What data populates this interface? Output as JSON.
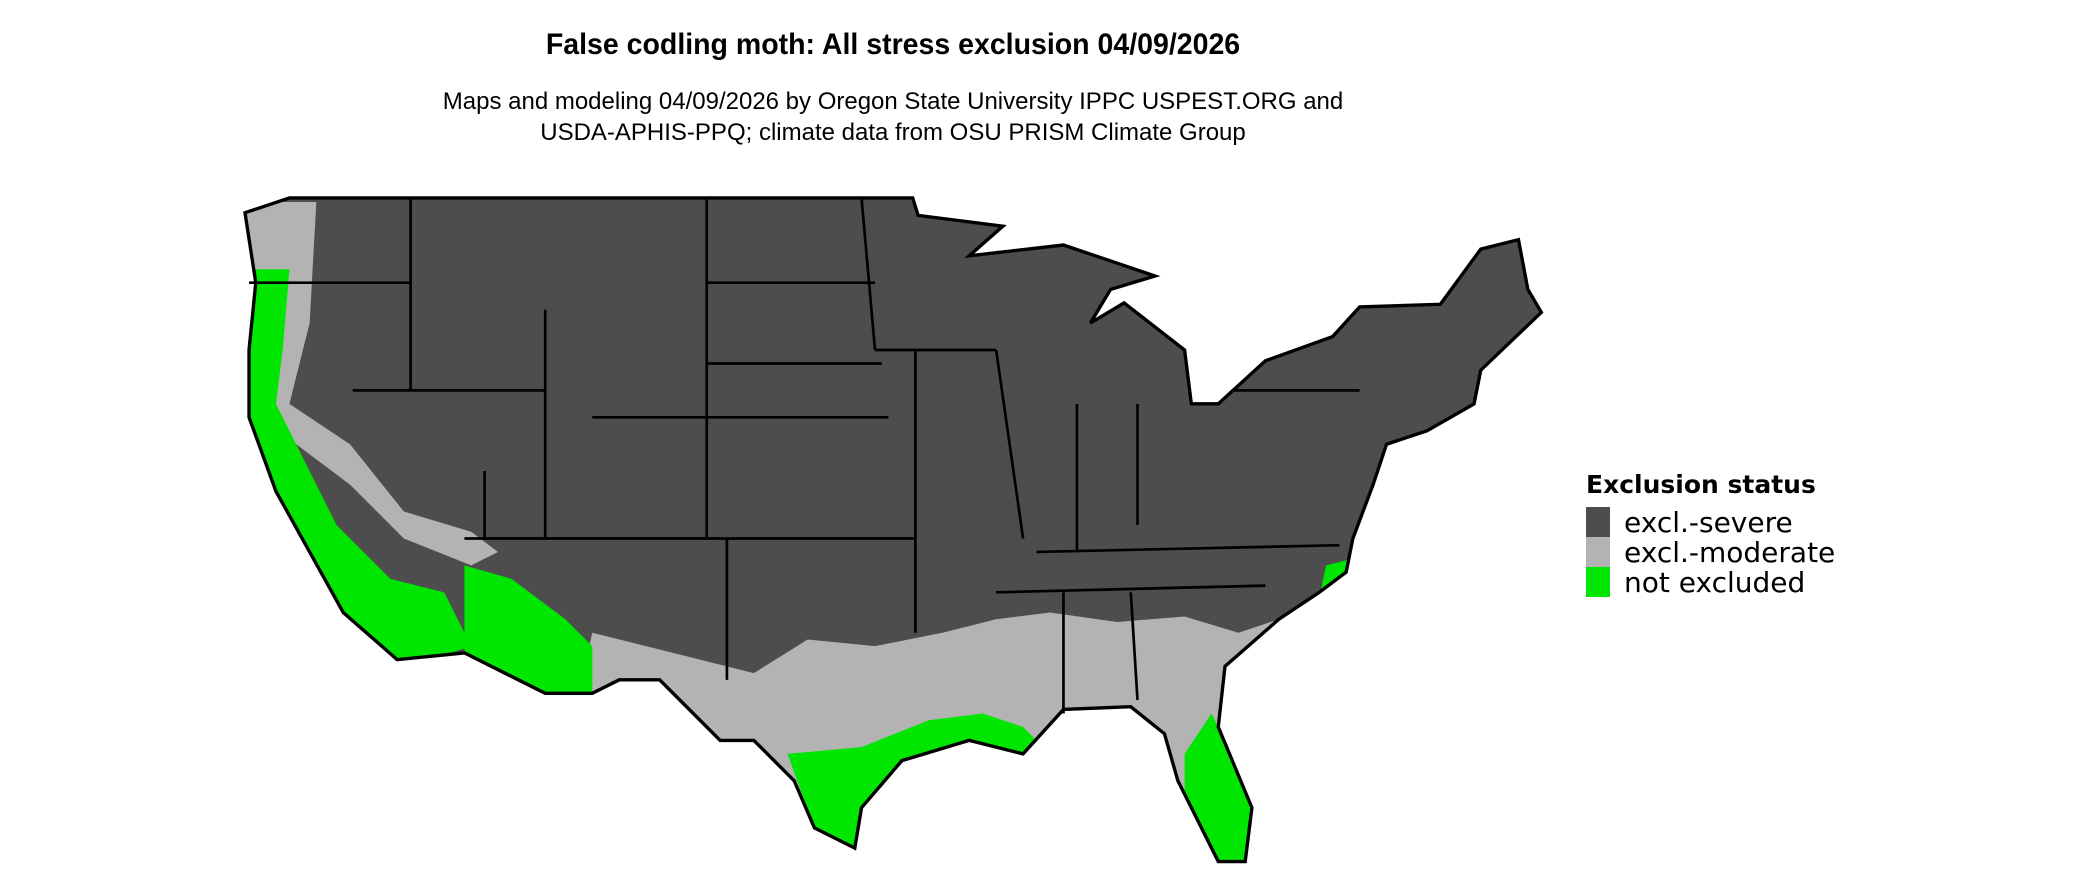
{
  "title": "False codling moth: All stress exclusion 04/09/2026",
  "subtitle_line1": "Maps and modeling 04/09/2026 by Oregon State University IPPC USPEST.ORG and",
  "subtitle_line2": "USDA-APHIS-PPQ; climate data from OSU PRISM Climate Group",
  "legend": {
    "title": "Exclusion status",
    "items": [
      {
        "label": "excl.-severe",
        "color": "#4d4d4d"
      },
      {
        "label": "excl.-moderate",
        "color": "#b3b3b3"
      },
      {
        "label": "not excluded",
        "color": "#00e600"
      }
    ]
  },
  "map": {
    "region": "Contiguous United States",
    "border_color": "#000000"
  }
}
